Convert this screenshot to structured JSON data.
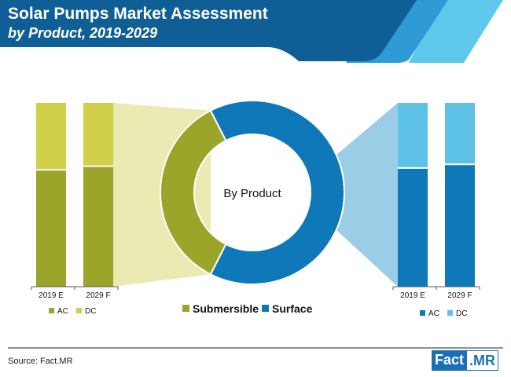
{
  "header": {
    "title": "Solar Pumps Market Assessment",
    "subtitle": "by Product, 2019-2029"
  },
  "colors": {
    "banner": "#0f5e96",
    "banner_accent_1": "#2e9bd6",
    "banner_accent_2": "#5ec8ec",
    "submersible": "#9aa52a",
    "submersible_light": "#cfd047",
    "submersible_fan": "#eaeab2",
    "surface": "#0e78b8",
    "surface_light": "#5ec1e6",
    "surface_fan": "#9ccde6",
    "axis": "#555555"
  },
  "chart_data": [
    {
      "type": "pie",
      "center_label": "By Product",
      "slices": [
        {
          "name": "Submersible",
          "value": 35
        },
        {
          "name": "Surface",
          "value": 65
        }
      ],
      "legend": [
        "Submersible",
        "Surface"
      ]
    },
    {
      "type": "bar",
      "stacked": true,
      "segment": "Submersible",
      "categories": [
        "2019 E",
        "2029 F"
      ],
      "series": [
        {
          "name": "AC",
          "values": [
            64,
            66
          ]
        },
        {
          "name": "DC",
          "values": [
            36,
            34
          ]
        }
      ],
      "ylim": [
        0,
        100
      ]
    },
    {
      "type": "bar",
      "stacked": true,
      "segment": "Surface",
      "categories": [
        "2019 E",
        "2029 F"
      ],
      "series": [
        {
          "name": "AC",
          "values": [
            65,
            67
          ]
        },
        {
          "name": "DC",
          "values": [
            35,
            33
          ]
        }
      ],
      "ylim": [
        0,
        100
      ]
    }
  ],
  "footer": {
    "source": "Source: Fact.MR",
    "logo_left": "Fact",
    "logo_right": ".MR"
  }
}
